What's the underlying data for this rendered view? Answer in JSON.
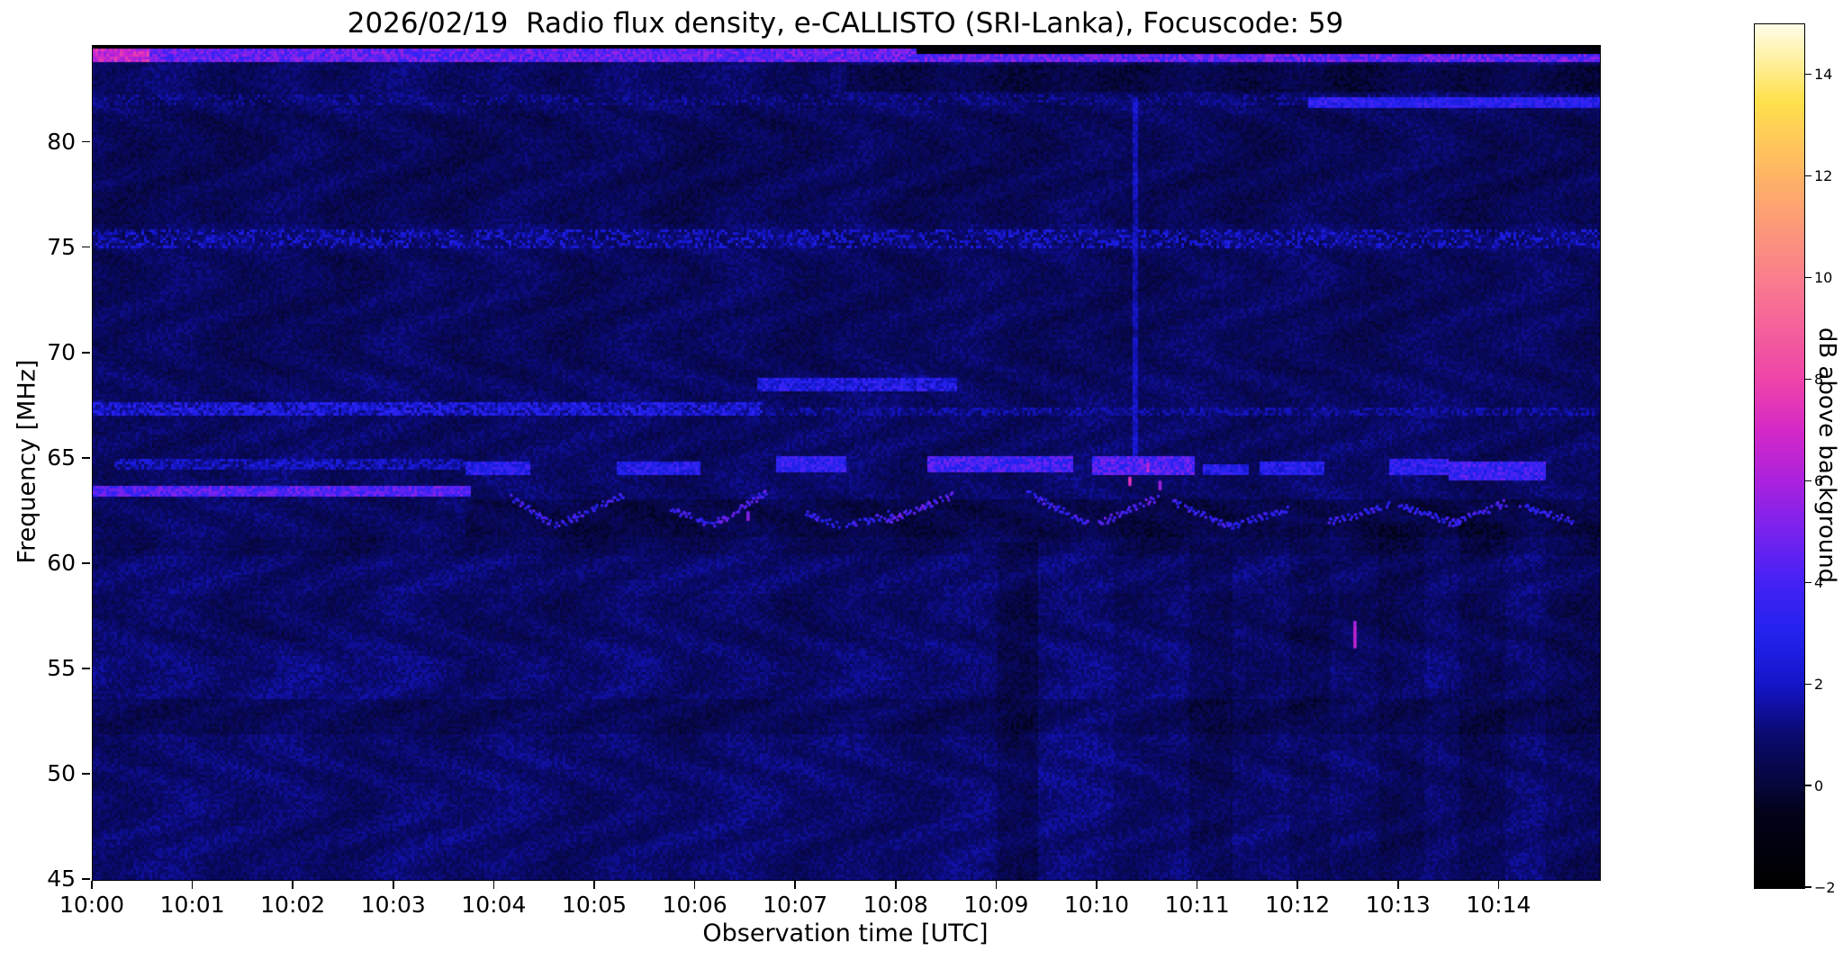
{
  "chart_data": {
    "type": "heatmap",
    "title": "2026/02/19  Radio flux density, e-CALLISTO (SRI-Lanka), Focuscode: 59",
    "xlabel": "Observation time [UTC]",
    "ylabel": "Frequency [MHz]",
    "x_tick_labels": [
      "10:00",
      "10:01",
      "10:02",
      "10:03",
      "10:04",
      "10:05",
      "10:06",
      "10:07",
      "10:08",
      "10:09",
      "10:10",
      "10:11",
      "10:12",
      "10:13",
      "10:14"
    ],
    "x_tick_minutes": [
      0,
      1,
      2,
      3,
      4,
      5,
      6,
      7,
      8,
      9,
      10,
      11,
      12,
      13,
      14
    ],
    "xlim_minutes": [
      0,
      15
    ],
    "y_ticks": [
      45,
      50,
      55,
      60,
      65,
      70,
      75,
      80
    ],
    "ylim": [
      45,
      84.6
    ],
    "grid": false,
    "legend": "none",
    "colorbar": {
      "label": "dB above background",
      "ticks": [
        -2,
        0,
        2,
        4,
        6,
        8,
        10,
        12,
        14
      ],
      "tick_labels": [
        "−2",
        "0",
        "2",
        "4",
        "6",
        "8",
        "10",
        "12",
        "14"
      ],
      "vmin": -2,
      "vmax": 15,
      "colormap_name": "gnuplot2-like (black-blue-magenta-pink-yellow-white)",
      "colormap_stops": [
        {
          "v": -2,
          "c": "#000000"
        },
        {
          "v": -0.5,
          "c": "#02021a"
        },
        {
          "v": 0,
          "c": "#06063a"
        },
        {
          "v": 1,
          "c": "#0a0a6e"
        },
        {
          "v": 2,
          "c": "#1515c8"
        },
        {
          "v": 3,
          "c": "#2222ee"
        },
        {
          "v": 4,
          "c": "#4422f5"
        },
        {
          "v": 5,
          "c": "#7722ee"
        },
        {
          "v": 6,
          "c": "#aa22dd"
        },
        {
          "v": 7,
          "c": "#d428c8"
        },
        {
          "v": 8,
          "c": "#ee44aa"
        },
        {
          "v": 10,
          "c": "#fa7d8d"
        },
        {
          "v": 12,
          "c": "#ffb366"
        },
        {
          "v": 13.5,
          "c": "#ffe14d"
        },
        {
          "v": 15,
          "c": "#fffde8"
        }
      ]
    },
    "background": {
      "base_db": 0.8,
      "noise_db": 0.9
    },
    "features": {
      "shades": [
        {
          "t": [
            0,
            15
          ],
          "f": [
            45,
            60.5
          ],
          "dv": 0.12
        },
        {
          "t": [
            0,
            15
          ],
          "f": [
            52,
            53.6
          ],
          "dv": -0.32
        },
        {
          "t": [
            0,
            15
          ],
          "f": [
            56.3,
            58.6
          ],
          "dv": -0.15
        },
        {
          "t": [
            0,
            15
          ],
          "f": [
            69,
            74.8
          ],
          "dv": -0.12
        },
        {
          "t": [
            0,
            15
          ],
          "f": [
            76.2,
            81.4
          ],
          "dv": -0.2
        },
        {
          "t": [
            7.5,
            15
          ],
          "f": [
            82.4,
            83.7
          ],
          "dv": -0.55
        },
        {
          "t": [
            3.7,
            15
          ],
          "f": [
            61.35,
            63.05
          ],
          "dv": -0.5
        },
        {
          "t": [
            0,
            15
          ],
          "f": [
            60.4,
            61.35
          ],
          "dv": -0.22
        },
        {
          "t": [
            0,
            3.7
          ],
          "f": [
            53.6,
            55.6
          ],
          "dv": 0.18
        },
        {
          "t": [
            9.0,
            9.4
          ],
          "f": [
            45,
            61
          ],
          "dv": -0.4
        },
        {
          "t": [
            9.4,
            10.15
          ],
          "f": [
            45,
            61
          ],
          "dv": 0.18
        },
        {
          "t": [
            10.9,
            11.35
          ],
          "f": [
            45,
            61
          ],
          "dv": -0.38
        },
        {
          "t": [
            11.9,
            12.3
          ],
          "f": [
            45,
            62
          ],
          "dv": -0.32
        },
        {
          "t": [
            12.8,
            13.25
          ],
          "f": [
            45,
            62
          ],
          "dv": -0.32
        },
        {
          "t": [
            13.6,
            14.05
          ],
          "f": [
            45,
            62
          ],
          "dv": -0.28
        },
        {
          "t": [
            14.45,
            15
          ],
          "f": [
            45,
            62
          ],
          "dv": -0.25
        },
        {
          "t": [
            10.34,
            10.4
          ],
          "f": [
            65,
            82
          ],
          "dv": 1.2
        }
      ],
      "bands": [
        {
          "t": [
            0,
            15
          ],
          "f": [
            75.0,
            75.9
          ],
          "v": 0.9,
          "jitter": 1.9
        },
        {
          "t": [
            0,
            6.65
          ],
          "f": [
            67.05,
            67.65
          ],
          "v": 2.3,
          "jitter": 1.3
        },
        {
          "t": [
            6.65,
            15
          ],
          "f": [
            67.05,
            67.5
          ],
          "v": 1.2,
          "jitter": 0.9
        },
        {
          "t": [
            6.6,
            8.6
          ],
          "f": [
            68.25,
            68.85
          ],
          "v": 2.8,
          "jitter": 1.2
        },
        {
          "t": [
            0,
            3.75
          ],
          "f": [
            63.25,
            63.7
          ],
          "v": 4.3,
          "jitter": 1.1
        },
        {
          "t": [
            0.2,
            3.7
          ],
          "f": [
            64.55,
            65.0
          ],
          "v": 1.7,
          "jitter": 1.0
        },
        {
          "t": [
            3.7,
            4.35
          ],
          "f": [
            64.2,
            64.9
          ],
          "v": 3.1,
          "jitter": 1.0
        },
        {
          "t": [
            5.2,
            6.05
          ],
          "f": [
            64.3,
            64.9
          ],
          "v": 3.1,
          "jitter": 1.0
        },
        {
          "t": [
            6.8,
            7.5
          ],
          "f": [
            64.4,
            65.1
          ],
          "v": 3.4,
          "jitter": 1.0
        },
        {
          "t": [
            8.3,
            9.75
          ],
          "f": [
            64.4,
            65.2
          ],
          "v": 3.9,
          "jitter": 1.1
        },
        {
          "t": [
            9.95,
            10.95
          ],
          "f": [
            64.3,
            65.1
          ],
          "v": 4.1,
          "jitter": 1.2
        },
        {
          "t": [
            11.05,
            11.5
          ],
          "f": [
            64.2,
            64.8
          ],
          "v": 3.0,
          "jitter": 1.0
        },
        {
          "t": [
            11.6,
            12.25
          ],
          "f": [
            64.3,
            64.9
          ],
          "v": 2.9,
          "jitter": 1.0
        },
        {
          "t": [
            12.9,
            13.5
          ],
          "f": [
            64.3,
            65.0
          ],
          "v": 3.3,
          "jitter": 1.0
        },
        {
          "t": [
            13.5,
            14.45
          ],
          "f": [
            64.0,
            64.9
          ],
          "v": 3.7,
          "jitter": 1.1
        },
        {
          "t": [
            0,
            15
          ],
          "f": [
            81.75,
            82.3
          ],
          "v": 0.4,
          "jitter": 1.5
        },
        {
          "t": [
            12.1,
            15
          ],
          "f": [
            81.7,
            82.25
          ],
          "v": 3.2,
          "jitter": 0.9
        },
        {
          "t": [
            0,
            15
          ],
          "f": [
            83.85,
            84.45
          ],
          "v": 4.6,
          "jitter": 1.2
        },
        {
          "t": [
            0,
            0.55
          ],
          "f": [
            83.8,
            84.5
          ],
          "v": 6.8,
          "jitter": 1.2
        },
        {
          "t": [
            0,
            15
          ],
          "f": [
            84.45,
            84.62
          ],
          "v": -1.6,
          "jitter": 0.4,
          "mode": "set"
        },
        {
          "t": [
            8.2,
            15
          ],
          "f": [
            84.18,
            84.62
          ],
          "v": -1.4,
          "jitter": 0.6,
          "mode": "set"
        }
      ],
      "bursts": [
        {
          "t": [
            4.15,
            4.55
          ],
          "f": [
            63.2,
            62.0
          ],
          "v": 3.8
        },
        {
          "t": [
            4.6,
            5.3
          ],
          "f": [
            61.8,
            63.3
          ],
          "v": 3.6
        },
        {
          "t": [
            5.75,
            6.15
          ],
          "f": [
            62.6,
            61.9
          ],
          "v": 3.6
        },
        {
          "t": [
            6.15,
            6.7
          ],
          "f": [
            61.8,
            63.4
          ],
          "v": 4.2
        },
        {
          "t": [
            7.1,
            7.45
          ],
          "f": [
            62.4,
            61.8
          ],
          "v": 3.4
        },
        {
          "t": [
            7.5,
            7.95
          ],
          "f": [
            61.8,
            62.4
          ],
          "v": 3.5
        },
        {
          "t": [
            7.9,
            8.55
          ],
          "f": [
            62.0,
            63.3
          ],
          "v": 4.3
        },
        {
          "t": [
            9.3,
            9.9
          ],
          "f": [
            63.4,
            61.9
          ],
          "v": 3.9
        },
        {
          "t": [
            10.0,
            10.6
          ],
          "f": [
            61.9,
            63.2
          ],
          "v": 4.4
        },
        {
          "t": [
            10.75,
            11.3
          ],
          "f": [
            63.0,
            61.8
          ],
          "v": 3.7
        },
        {
          "t": [
            11.3,
            11.9
          ],
          "f": [
            61.8,
            62.6
          ],
          "v": 3.4
        },
        {
          "t": [
            12.3,
            12.9
          ],
          "f": [
            62.0,
            62.8
          ],
          "v": 3.6
        },
        {
          "t": [
            13.0,
            13.6
          ],
          "f": [
            62.8,
            61.9
          ],
          "v": 3.5
        },
        {
          "t": [
            13.5,
            14.1
          ],
          "f": [
            61.9,
            63.0
          ],
          "v": 3.8
        },
        {
          "t": [
            14.2,
            14.75
          ],
          "f": [
            62.8,
            62.0
          ],
          "v": 3.5
        }
      ],
      "points": [
        {
          "t": 12.56,
          "f": [
            56.1,
            57.3
          ],
          "v": 6.3
        },
        {
          "t": 10.32,
          "f": [
            63.8,
            64.15
          ],
          "v": 7.2
        },
        {
          "t": 10.5,
          "f": [
            64.4,
            64.8
          ],
          "v": 6.6
        },
        {
          "t": 10.62,
          "f": [
            63.6,
            63.95
          ],
          "v": 6.0
        },
        {
          "t": 6.52,
          "f": [
            62.1,
            62.5
          ],
          "v": 5.6
        }
      ]
    }
  }
}
